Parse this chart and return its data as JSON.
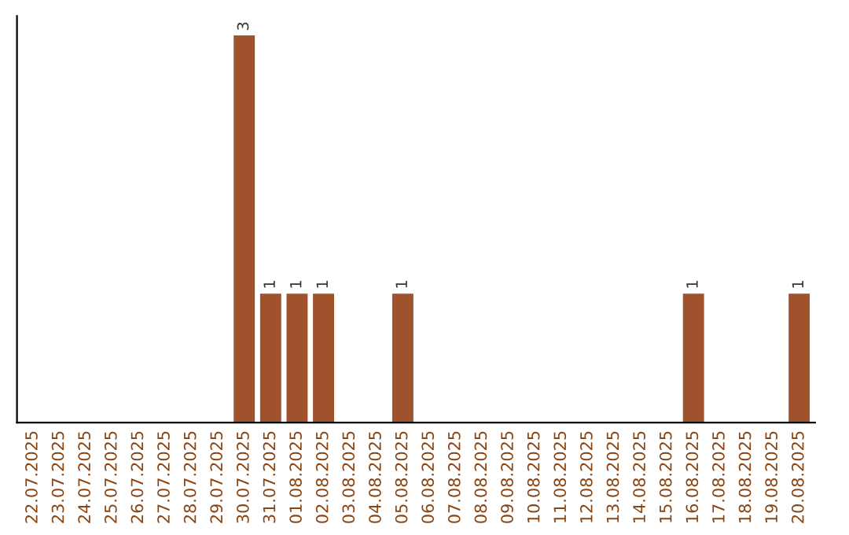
{
  "chart_data": {
    "type": "bar",
    "categories": [
      "22.07.2025",
      "23.07.2025",
      "24.07.2025",
      "25.07.2025",
      "26.07.2025",
      "27.07.2025",
      "28.07.2025",
      "29.07.2025",
      "30.07.2025",
      "31.07.2025",
      "01.08.2025",
      "02.08.2025",
      "03.08.2025",
      "04.08.2025",
      "05.08.2025",
      "06.08.2025",
      "07.08.2025",
      "08.08.2025",
      "09.08.2025",
      "10.08.2025",
      "11.08.2025",
      "12.08.2025",
      "13.08.2025",
      "14.08.2025",
      "15.08.2025",
      "16.08.2025",
      "17.08.2025",
      "18.08.2025",
      "19.08.2025",
      "20.08.2025"
    ],
    "values": [
      0,
      0,
      0,
      0,
      0,
      0,
      0,
      0,
      3,
      1,
      1,
      1,
      0,
      0,
      1,
      0,
      0,
      0,
      0,
      0,
      0,
      0,
      0,
      0,
      0,
      1,
      0,
      0,
      0,
      1
    ],
    "value_labels": [
      null,
      null,
      null,
      null,
      null,
      null,
      null,
      null,
      "3",
      "1",
      "1",
      "1",
      null,
      null,
      "1",
      null,
      null,
      null,
      null,
      null,
      null,
      null,
      null,
      null,
      null,
      "1",
      null,
      null,
      null,
      "1"
    ],
    "color": "#a0522d",
    "tick_labels": "x",
    "grid": false,
    "legend": false
  }
}
